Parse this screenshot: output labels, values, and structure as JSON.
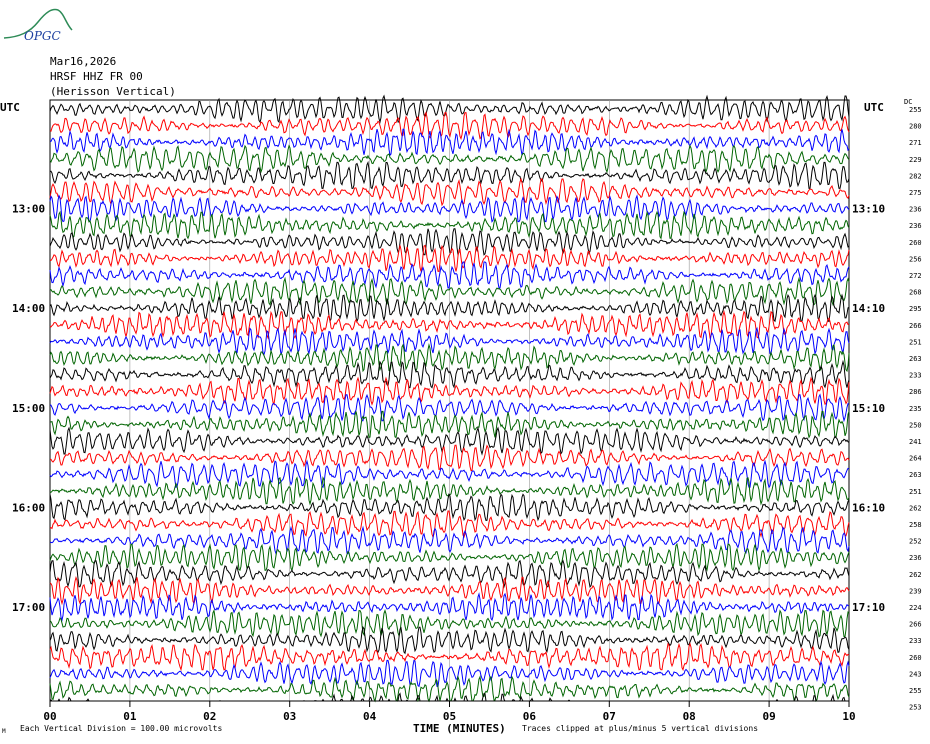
{
  "header": {
    "logo_text": "OPGC",
    "date": "Mar16,2026",
    "station": "HRSF HHZ FR 00",
    "site": "(Herisson Vertical)",
    "utc_left": "UTC",
    "utc_right": "UTC",
    "dc_label": "DC"
  },
  "footer": {
    "division_note": "Each Vertical Division =  100.00 microvolts",
    "axis_title": "TIME (MINUTES)",
    "clip_note": "Traces clipped at plus/minus 5 vertical divisions",
    "corner_mark": "M"
  },
  "chart_data": {
    "type": "line",
    "title": "HRSF HHZ FR 00 (Herisson Vertical)",
    "xlabel": "TIME (MINUTES)",
    "xlim": [
      0,
      10
    ],
    "x_ticks": [
      "00",
      "01",
      "02",
      "03",
      "04",
      "05",
      "06",
      "07",
      "08",
      "09",
      "10"
    ],
    "trace_colors": [
      "#000000",
      "#ff0000",
      "#0000ff",
      "#006400"
    ],
    "grid": true,
    "rows_per_hour": 6,
    "left_time_labels": [
      "13:00",
      "14:00",
      "15:00",
      "16:00",
      "17:00"
    ],
    "right_time_labels": [
      "13:10",
      "14:10",
      "15:10",
      "16:10",
      "17:10"
    ],
    "time_label_rows": [
      6,
      12,
      18,
      24,
      30
    ],
    "dc_offsets": [
      255,
      280,
      271,
      229,
      282,
      275,
      236,
      236,
      260,
      256,
      272,
      268,
      295,
      266,
      251,
      263,
      233,
      286,
      235,
      250,
      241,
      264,
      263,
      251,
      262,
      258,
      252,
      236,
      262,
      239,
      224,
      266,
      233,
      260,
      243,
      255,
      253
    ]
  }
}
